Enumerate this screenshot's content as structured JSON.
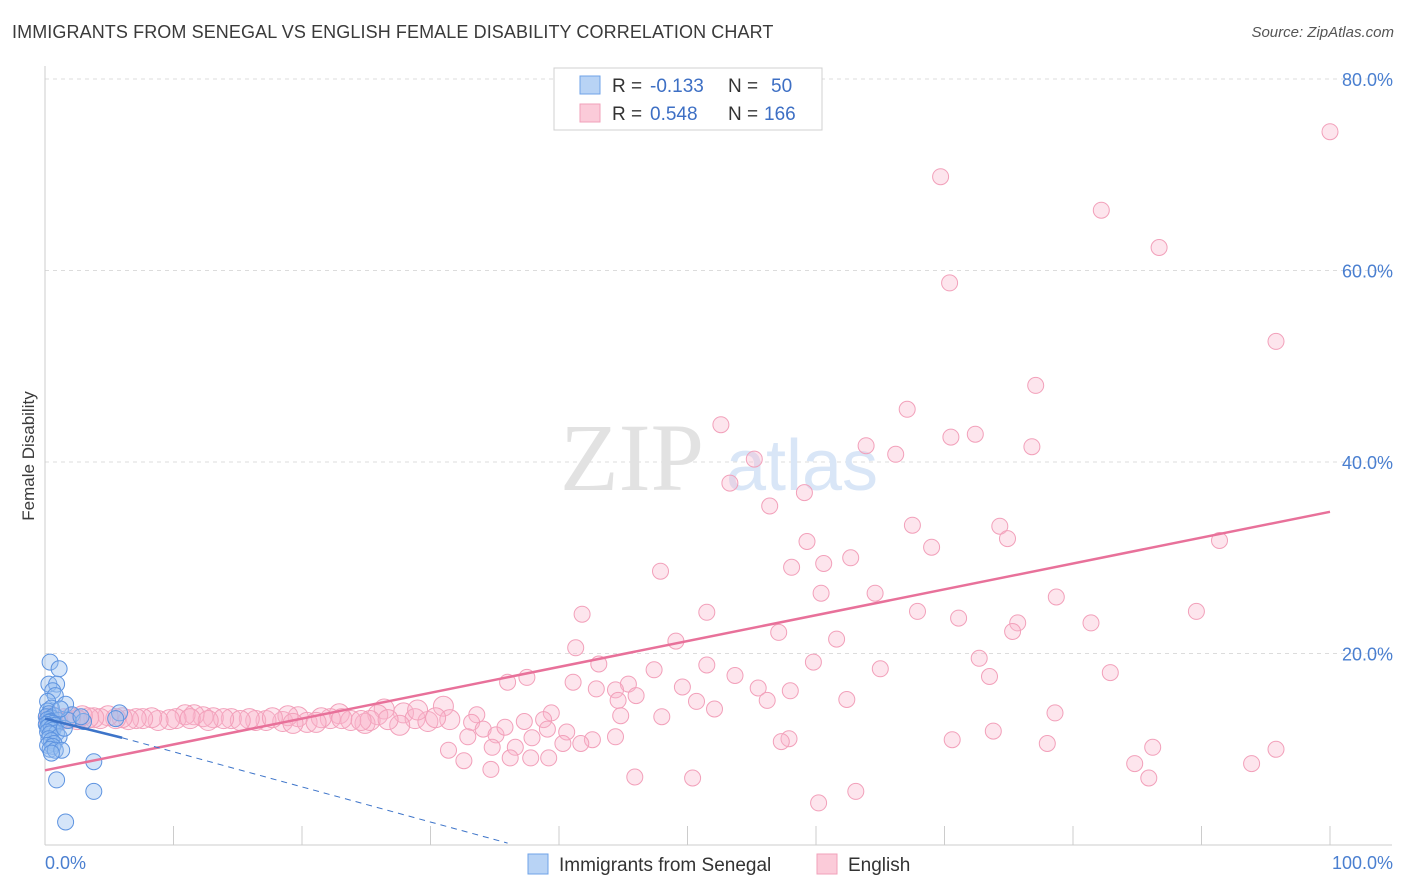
{
  "title": "IMMIGRANTS FROM SENEGAL VS ENGLISH FEMALE DISABILITY CORRELATION CHART",
  "source": "Source: ZipAtlas.com",
  "watermark": {
    "zip": "ZIP",
    "atlas": "atlas"
  },
  "legend": {
    "r_label": "R =",
    "n_label": "N =",
    "rows": [
      {
        "r": "-0.133",
        "n": "50"
      },
      {
        "r": "0.548",
        "n": "166"
      }
    ]
  },
  "chart_data": {
    "type": "scatter",
    "title": "IMMIGRANTS FROM SENEGAL VS ENGLISH FEMALE DISABILITY CORRELATION CHART",
    "xlabel": "",
    "ylabel": "Female Disability",
    "xlim": [
      0,
      100
    ],
    "ylim": [
      0,
      80
    ],
    "x_tick_labels": [
      "0.0%",
      "100.0%"
    ],
    "y_ticks": [
      20,
      40,
      60,
      80
    ],
    "y_tick_labels": [
      "20.0%",
      "40.0%",
      "60.0%",
      "80.0%"
    ],
    "grid": true,
    "legend_position": "top-center",
    "colors": {
      "senegal": "#6fa3e8",
      "english": "#f2a0ba",
      "senegal_line": "#3d74c9",
      "english_line": "#e8719a"
    },
    "series": [
      {
        "name": "Immigrants from Senegal",
        "r": -0.133,
        "n": 50,
        "trend": {
          "x": [
            0,
            6
          ],
          "y": [
            13.2,
            11.2
          ]
        },
        "trend_dashed": {
          "x": [
            6,
            36
          ],
          "y": [
            11.2,
            0.2
          ]
        },
        "points": [
          [
            0.4,
            19.1
          ],
          [
            1.1,
            18.4
          ],
          [
            0.3,
            16.8
          ],
          [
            0.9,
            16.8
          ],
          [
            0.6,
            16.1
          ],
          [
            0.8,
            15.6
          ],
          [
            0.2,
            15.0
          ],
          [
            1.6,
            14.7
          ],
          [
            0.5,
            14.3
          ],
          [
            0.2,
            14.0
          ],
          [
            0.3,
            13.7
          ],
          [
            0.7,
            13.5
          ],
          [
            0.1,
            13.4
          ],
          [
            0.5,
            13.3
          ],
          [
            0.2,
            13.1
          ],
          [
            1.0,
            13.0
          ],
          [
            0.4,
            12.9
          ],
          [
            0.3,
            12.8
          ],
          [
            0.6,
            12.7
          ],
          [
            0.1,
            12.6
          ],
          [
            0.8,
            12.5
          ],
          [
            0.3,
            12.4
          ],
          [
            0.2,
            12.3
          ],
          [
            0.5,
            12.2
          ],
          [
            0.6,
            12.0
          ],
          [
            0.2,
            11.8
          ],
          [
            0.9,
            11.7
          ],
          [
            0.4,
            11.6
          ],
          [
            1.1,
            11.3
          ],
          [
            0.3,
            11.1
          ],
          [
            0.5,
            10.9
          ],
          [
            0.7,
            10.6
          ],
          [
            0.2,
            10.4
          ],
          [
            0.6,
            10.3
          ],
          [
            0.4,
            10.0
          ],
          [
            0.8,
            9.9
          ],
          [
            1.3,
            9.9
          ],
          [
            0.5,
            9.6
          ],
          [
            2.1,
            13.6
          ],
          [
            3.0,
            12.9
          ],
          [
            5.8,
            13.8
          ],
          [
            5.5,
            13.2
          ],
          [
            3.8,
            8.7
          ],
          [
            3.8,
            5.6
          ],
          [
            1.5,
            12.2
          ],
          [
            1.8,
            13.0
          ],
          [
            1.2,
            14.2
          ],
          [
            0.9,
            6.8
          ],
          [
            1.6,
            2.4
          ],
          [
            2.8,
            13.4
          ]
        ]
      },
      {
        "name": "English",
        "r": 0.548,
        "n": 166,
        "trend": {
          "x": [
            0,
            100
          ],
          "y": [
            7.8,
            34.8
          ]
        },
        "points": [
          [
            100,
            74.5
          ],
          [
            69.7,
            69.8
          ],
          [
            82.2,
            66.3
          ],
          [
            86.7,
            62.4
          ],
          [
            70.4,
            58.7
          ],
          [
            95.8,
            52.6
          ],
          [
            77.1,
            48.0
          ],
          [
            67.1,
            45.5
          ],
          [
            70.5,
            42.6
          ],
          [
            63.9,
            41.7
          ],
          [
            76.8,
            41.6
          ],
          [
            72.4,
            42.9
          ],
          [
            66.2,
            40.8
          ],
          [
            52.6,
            43.9
          ],
          [
            55.2,
            40.3
          ],
          [
            53.3,
            37.8
          ],
          [
            59.1,
            36.8
          ],
          [
            56.4,
            35.4
          ],
          [
            67.5,
            33.4
          ],
          [
            74.3,
            33.3
          ],
          [
            69.0,
            31.1
          ],
          [
            74.9,
            32.0
          ],
          [
            91.4,
            31.8
          ],
          [
            59.3,
            31.7
          ],
          [
            62.7,
            30.0
          ],
          [
            58.1,
            29.0
          ],
          [
            60.6,
            29.4
          ],
          [
            47.9,
            28.6
          ],
          [
            60.4,
            26.3
          ],
          [
            64.6,
            26.3
          ],
          [
            78.7,
            25.9
          ],
          [
            41.8,
            24.1
          ],
          [
            51.5,
            24.3
          ],
          [
            67.9,
            24.4
          ],
          [
            89.6,
            24.4
          ],
          [
            71.1,
            23.7
          ],
          [
            81.4,
            23.2
          ],
          [
            75.7,
            23.2
          ],
          [
            75.3,
            22.3
          ],
          [
            57.1,
            22.2
          ],
          [
            49.1,
            21.3
          ],
          [
            61.6,
            21.5
          ],
          [
            41.3,
            20.6
          ],
          [
            72.7,
            19.5
          ],
          [
            59.8,
            19.1
          ],
          [
            43.1,
            18.9
          ],
          [
            51.5,
            18.8
          ],
          [
            47.4,
            18.3
          ],
          [
            82.9,
            18.0
          ],
          [
            53.7,
            17.7
          ],
          [
            73.5,
            17.6
          ],
          [
            37.5,
            17.5
          ],
          [
            36.0,
            17.0
          ],
          [
            41.1,
            17.0
          ],
          [
            49.6,
            16.5
          ],
          [
            65.0,
            18.4
          ],
          [
            45.4,
            16.8
          ],
          [
            42.9,
            16.3
          ],
          [
            44.4,
            16.2
          ],
          [
            55.5,
            16.4
          ],
          [
            58.0,
            16.1
          ],
          [
            46.0,
            15.6
          ],
          [
            56.2,
            15.1
          ],
          [
            44.6,
            15.1
          ],
          [
            50.7,
            15.0
          ],
          [
            62.4,
            15.2
          ],
          [
            52.1,
            14.2
          ],
          [
            78.6,
            13.8
          ],
          [
            39.4,
            13.8
          ],
          [
            48.0,
            13.4
          ],
          [
            31.0,
            14.5
          ],
          [
            26.4,
            14.2
          ],
          [
            25.9,
            13.6
          ],
          [
            33.6,
            13.6
          ],
          [
            37.3,
            12.9
          ],
          [
            38.8,
            13.1
          ],
          [
            44.8,
            13.5
          ],
          [
            31.5,
            13.1
          ],
          [
            33.2,
            12.8
          ],
          [
            24.9,
            12.7
          ],
          [
            25.3,
            13.0
          ],
          [
            22.9,
            13.7
          ],
          [
            22.2,
            13.2
          ],
          [
            19.7,
            13.4
          ],
          [
            20.4,
            12.8
          ],
          [
            18.5,
            12.9
          ],
          [
            18.9,
            13.5
          ],
          [
            17.2,
            13.0
          ],
          [
            16.4,
            13.0
          ],
          [
            15.9,
            13.2
          ],
          [
            14.5,
            13.2
          ],
          [
            13.1,
            13.3
          ],
          [
            12.3,
            13.4
          ],
          [
            11.6,
            13.6
          ],
          [
            10.9,
            13.6
          ],
          [
            10.2,
            13.2
          ],
          [
            9.7,
            13.1
          ],
          [
            8.8,
            13.0
          ],
          [
            8.3,
            13.3
          ],
          [
            7.6,
            13.2
          ],
          [
            7.1,
            13.2
          ],
          [
            6.5,
            13.1
          ],
          [
            6.0,
            13.3
          ],
          [
            5.5,
            13.2
          ],
          [
            4.9,
            13.5
          ],
          [
            4.3,
            13.2
          ],
          [
            3.8,
            13.3
          ],
          [
            3.4,
            13.3
          ],
          [
            2.9,
            13.5
          ],
          [
            2.5,
            13.1
          ],
          [
            2.0,
            13.3
          ],
          [
            1.5,
            13.2
          ],
          [
            1.0,
            12.9
          ],
          [
            0.6,
            13.4
          ],
          [
            0.3,
            13.1
          ],
          [
            23.8,
            13.0
          ],
          [
            21.5,
            13.3
          ],
          [
            27.9,
            13.8
          ],
          [
            28.8,
            13.2
          ],
          [
            29.8,
            12.9
          ],
          [
            34.1,
            12.1
          ],
          [
            35.1,
            11.5
          ],
          [
            35.8,
            12.3
          ],
          [
            39.1,
            12.1
          ],
          [
            40.6,
            11.8
          ],
          [
            37.9,
            11.2
          ],
          [
            40.3,
            10.6
          ],
          [
            42.6,
            11.0
          ],
          [
            32.9,
            11.3
          ],
          [
            34.8,
            10.2
          ],
          [
            31.4,
            9.9
          ],
          [
            36.6,
            10.2
          ],
          [
            32.6,
            8.8
          ],
          [
            36.2,
            9.1
          ],
          [
            34.7,
            7.9
          ],
          [
            37.8,
            9.1
          ],
          [
            39.2,
            9.1
          ],
          [
            41.7,
            10.6
          ],
          [
            44.4,
            11.3
          ],
          [
            57.9,
            11.1
          ],
          [
            57.3,
            10.8
          ],
          [
            70.6,
            11.0
          ],
          [
            73.8,
            11.9
          ],
          [
            78.0,
            10.6
          ],
          [
            86.2,
            10.2
          ],
          [
            95.8,
            10.0
          ],
          [
            84.8,
            8.5
          ],
          [
            85.9,
            7.0
          ],
          [
            93.9,
            8.5
          ],
          [
            60.2,
            4.4
          ],
          [
            63.1,
            5.6
          ],
          [
            45.9,
            7.1
          ],
          [
            50.4,
            7.0
          ],
          [
            27.6,
            12.5
          ],
          [
            29.0,
            14.1
          ],
          [
            30.4,
            13.3
          ],
          [
            26.7,
            13.1
          ],
          [
            24.6,
            13.0
          ],
          [
            23.1,
            13.2
          ],
          [
            21.1,
            12.8
          ],
          [
            19.3,
            12.7
          ],
          [
            17.7,
            13.3
          ],
          [
            15.2,
            13.0
          ],
          [
            13.9,
            13.2
          ],
          [
            12.7,
            13.0
          ],
          [
            11.3,
            13.2
          ]
        ]
      }
    ]
  },
  "bottom_legend": [
    {
      "label": "Immigrants from Senegal"
    },
    {
      "label": "English"
    }
  ]
}
